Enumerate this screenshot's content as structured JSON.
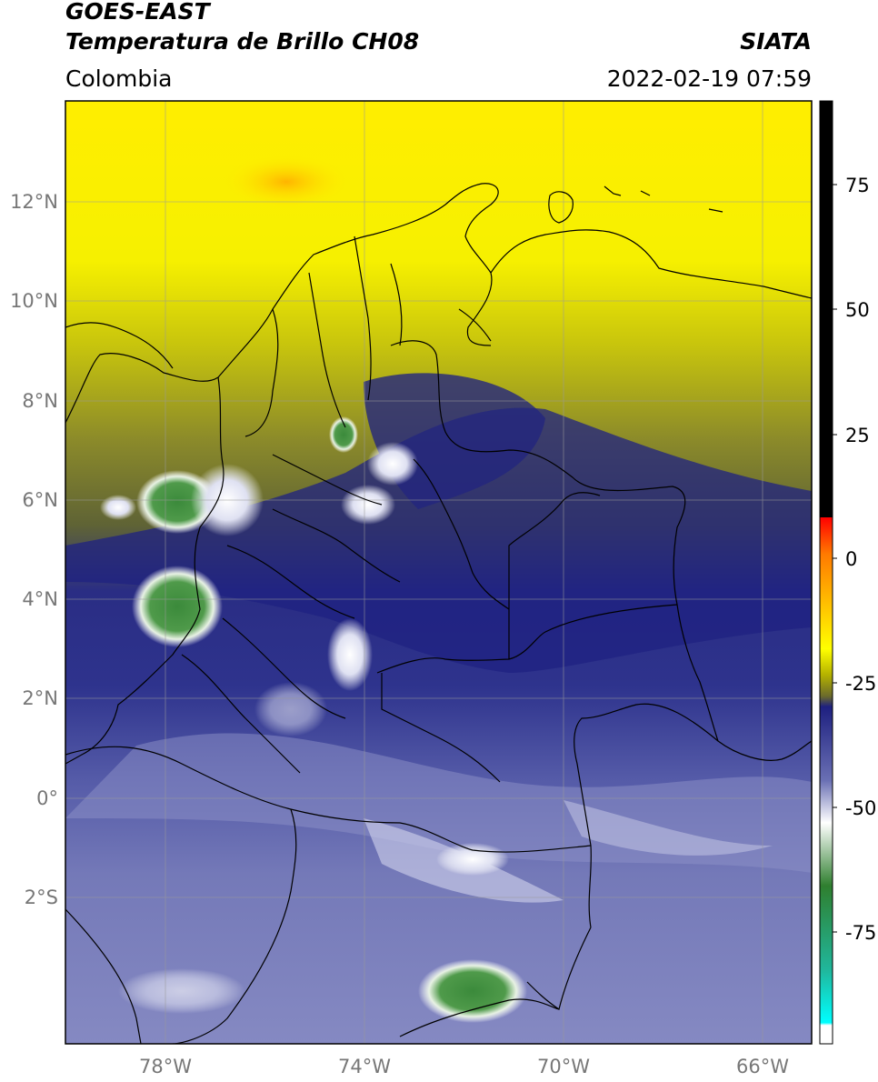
{
  "header": {
    "satellite": "GOES-EAST",
    "product": "Temperatura de Brillo CH08",
    "region": "Colombia",
    "agency": "SIATA",
    "datetime": "2022-02-19 07:59"
  },
  "map": {
    "lat_ticks": [
      "12°N",
      "10°N",
      "8°N",
      "6°N",
      "4°N",
      "2°N",
      "0°",
      "2°S"
    ],
    "lon_ticks": [
      "78°W",
      "74°W",
      "70°W",
      "66°W"
    ],
    "grid": true
  },
  "colorbar": {
    "ticks": [
      "75",
      "50",
      "25",
      "0",
      "-25",
      "-50",
      "-75"
    ],
    "range": [
      -95,
      90
    ],
    "colors": {
      "above_max": "#000000",
      "warm": [
        "#ff0000",
        "#ff8800",
        "#ffff00"
      ],
      "mid": [
        "#6b6b2c",
        "#1a1a80",
        "#ffffff"
      ],
      "cold": [
        "#2f7f2f",
        "#17b89a",
        "#00ffff"
      ]
    }
  }
}
